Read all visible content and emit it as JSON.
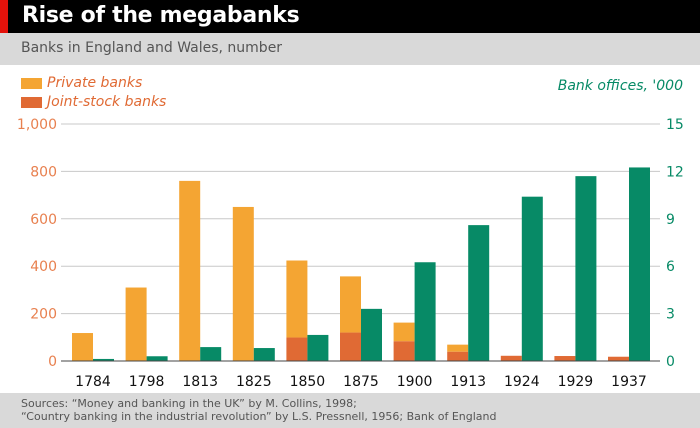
{
  "header": {
    "title": "Rise of the megabanks",
    "subtitle": "Banks in England and Wales, number"
  },
  "footer": {
    "source_line1": "Sources: “Money and banking in the UK” by M. Collins, 1998;",
    "source_line2": "“Country banking in the industrial revolution” by L.S. Pressnell, 1956; Bank of England"
  },
  "colors": {
    "private": "#f4a533",
    "joint": "#e06a34",
    "offices": "#078a66",
    "left_axis": "#e8804f",
    "header_accent": "#e3120b"
  },
  "chart_data": {
    "type": "bar",
    "title": "Rise of the megabanks",
    "subtitle": "Banks in England and Wales, number",
    "categories": [
      "1784",
      "1798",
      "1813",
      "1825",
      "1850",
      "1875",
      "1900",
      "1913",
      "1924",
      "1929",
      "1937"
    ],
    "series": [
      {
        "name": "Private banks",
        "axis": "left",
        "stacked_on": "Joint-stock banks",
        "values": [
          118,
          310,
          760,
          650,
          325,
          237,
          79,
          30,
          0,
          0,
          0
        ]
      },
      {
        "name": "Joint-stock banks",
        "axis": "left",
        "values": [
          0,
          0,
          0,
          0,
          99,
          120,
          83,
          39,
          22,
          21,
          18
        ]
      },
      {
        "name": "Bank offices, '000",
        "axis": "right",
        "values": [
          0.13,
          0.3,
          0.88,
          0.82,
          1.65,
          3.3,
          6.25,
          8.6,
          10.4,
          11.7,
          12.25
        ]
      }
    ],
    "left_axis": {
      "ylim": [
        0,
        1000
      ],
      "ticks": [
        "0",
        "200",
        "400",
        "600",
        "800",
        "1,000"
      ]
    },
    "right_axis": {
      "label": "Bank offices, '000",
      "ylim": [
        0,
        15
      ],
      "ticks": [
        "0",
        "3",
        "6",
        "9",
        "12",
        "15"
      ]
    },
    "grid": true,
    "legend": "top-left"
  }
}
